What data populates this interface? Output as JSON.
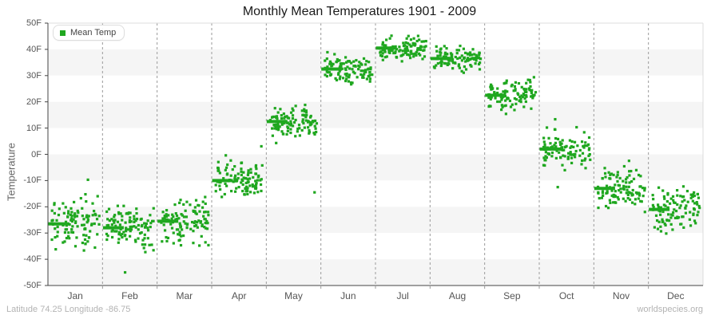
{
  "title": "Monthly Mean Temperatures 1901 - 2009",
  "legend": {
    "label": "Mean Temp"
  },
  "footer": {
    "left": "Latitude 74.25 Longitude -86.75",
    "right": "worldspecies.org"
  },
  "colors": {
    "point": "#1fa71f",
    "mean_line": "#1fa71f",
    "band": "#f5f5f5",
    "grid": "#9a9a9a",
    "axis": "#444444",
    "border": "#dcdcdc",
    "tick_text": "#555555",
    "footer_text": "#b3b3b3"
  },
  "chart_data": {
    "type": "scatter",
    "title": "Monthly Mean Temperatures 1901 - 2009",
    "xlabel": "",
    "ylabel": "Temperature",
    "ylim": [
      -50,
      50
    ],
    "ytick_labels": [
      "50F",
      "40F",
      "30F",
      "20F",
      "10F",
      "0F",
      "-10F",
      "-20F",
      "-30F",
      "-40F",
      "-50F"
    ],
    "categories": [
      "Jan",
      "Feb",
      "Mar",
      "Apr",
      "May",
      "Jun",
      "Jul",
      "Aug",
      "Sep",
      "Oct",
      "Nov",
      "Dec"
    ],
    "legend_position": "top-left",
    "grid": "dashed vertical separators between months; alternating horizontal 10F bands",
    "points_per_month": 109,
    "series": [
      {
        "name": "Mean Temp",
        "months": [
          {
            "month": "Jan",
            "mean": -26.5,
            "sd": 4.8,
            "min": -38.5,
            "max": -14.5,
            "outliers": [
              -9.7
            ]
          },
          {
            "month": "Feb",
            "mean": -28.0,
            "sd": 4.2,
            "min": -37.5,
            "max": -17.5,
            "outliers": [
              -45.0
            ]
          },
          {
            "month": "Mar",
            "mean": -25.5,
            "sd": 4.2,
            "min": -35.0,
            "max": -13.0,
            "outliers": []
          },
          {
            "month": "Apr",
            "mean": -10.0,
            "sd": 3.8,
            "min": -17.0,
            "max": 5.0,
            "outliers": []
          },
          {
            "month": "May",
            "mean": 12.5,
            "sd": 3.2,
            "min": 4.0,
            "max": 20.5,
            "outliers": [
              -14.5
            ]
          },
          {
            "month": "Jun",
            "mean": 32.5,
            "sd": 2.8,
            "min": 25.5,
            "max": 39.0,
            "outliers": []
          },
          {
            "month": "Jul",
            "mean": 40.5,
            "sd": 2.2,
            "min": 35.0,
            "max": 45.2,
            "outliers": []
          },
          {
            "month": "Aug",
            "mean": 36.5,
            "sd": 2.2,
            "min": 31.0,
            "max": 41.5,
            "outliers": []
          },
          {
            "month": "Sep",
            "mean": 22.5,
            "sd": 3.2,
            "min": 14.0,
            "max": 29.5,
            "outliers": []
          },
          {
            "month": "Oct",
            "mean": 2.0,
            "sd": 3.8,
            "min": -8.0,
            "max": 15.0,
            "outliers": [
              -12.5
            ]
          },
          {
            "month": "Nov",
            "mean": -13.0,
            "sd": 4.3,
            "min": -24.0,
            "max": 2.5,
            "outliers": []
          },
          {
            "month": "Dec",
            "mean": -21.0,
            "sd": 4.3,
            "min": -31.5,
            "max": -10.0,
            "outliers": []
          }
        ]
      }
    ]
  }
}
